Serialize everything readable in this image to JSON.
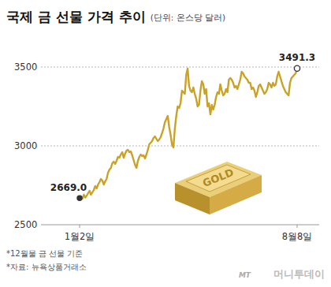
{
  "chart_data": {
    "type": "line",
    "title": "국제 금 선물 가격 추이",
    "subtitle": "(단위: 온스당 달러)",
    "categories": [
      "1월2일",
      null,
      null,
      null,
      null,
      null,
      null,
      null,
      null,
      null,
      null,
      null,
      null,
      null,
      null,
      null,
      null,
      null,
      null,
      null,
      null,
      null,
      null,
      null,
      null,
      null,
      null,
      null,
      null,
      null,
      null,
      null,
      null,
      null,
      null,
      null,
      null,
      null,
      null,
      null,
      null,
      null,
      null,
      null,
      null,
      null,
      null,
      null,
      null,
      null,
      null,
      null,
      null,
      null,
      null,
      null,
      null,
      null,
      null,
      null,
      null,
      null,
      null,
      null,
      null,
      null,
      null,
      null,
      null,
      null,
      null,
      null,
      null,
      null,
      null,
      null,
      null,
      null,
      null,
      null,
      null,
      null,
      null,
      null,
      null,
      null,
      null,
      null,
      null,
      null,
      null,
      null,
      null,
      null,
      null,
      null,
      null,
      null,
      null,
      null,
      null,
      null,
      null,
      null,
      null,
      null,
      null,
      null,
      null,
      null,
      null,
      null,
      null,
      null,
      null,
      null,
      null,
      null,
      null,
      null,
      null,
      null,
      null,
      null,
      null,
      null,
      null,
      null,
      null,
      null,
      null,
      null,
      null,
      null,
      null,
      null,
      null,
      null,
      null,
      null,
      null,
      null,
      null,
      null,
      null,
      null,
      null,
      null,
      null,
      null,
      null,
      null,
      null,
      "8월8일"
    ],
    "values": [
      2669.0,
      2680,
      2665,
      2690,
      2672,
      2685,
      2700,
      2715,
      2690,
      2705,
      2720,
      2745,
      2730,
      2755,
      2770,
      2790,
      2780,
      2755,
      2775,
      2790,
      2830,
      2850,
      2860,
      2890,
      2900,
      2885,
      2905,
      2930,
      2925,
      2945,
      2960,
      2925,
      2950,
      2970,
      2975,
      2960,
      2965,
      2940,
      2910,
      2880,
      2860,
      2905,
      2930,
      2945,
      2935,
      2940,
      2920,
      2945,
      2975,
      3010,
      3020,
      3030,
      3050,
      3060,
      3045,
      3030,
      3040,
      3055,
      3080,
      3110,
      3150,
      3170,
      3190,
      3120,
      3070,
      3010,
      2990,
      3110,
      3190,
      3250,
      3240,
      3270,
      3350,
      3340,
      3330,
      3450,
      3490,
      3380,
      3350,
      3340,
      3370,
      3330,
      3300,
      3250,
      3260,
      3350,
      3410,
      3390,
      3330,
      3360,
      3250,
      3270,
      3200,
      3260,
      3230,
      3260,
      3310,
      3340,
      3330,
      3390,
      3350,
      3320,
      3330,
      3360,
      3340,
      3420,
      3430,
      3420,
      3400,
      3370,
      3380,
      3360,
      3390,
      3420,
      3470,
      3460,
      3440,
      3430,
      3420,
      3400,
      3400,
      3360,
      3370,
      3350,
      3310,
      3340,
      3380,
      3390,
      3370,
      3350,
      3330,
      3340,
      3360,
      3400,
      3390,
      3370,
      3400,
      3380,
      3390,
      3440,
      3470,
      3440,
      3410,
      3380,
      3360,
      3340,
      3330,
      3320,
      3400,
      3430,
      3440,
      3450,
      3460,
      3491.3
    ],
    "color": "#c9a227",
    "ylim": [
      2500,
      3500
    ],
    "yticks": [
      2500,
      3000,
      3500
    ],
    "grid": true,
    "annotations": [
      {
        "index": 0,
        "text": "2669.0"
      },
      {
        "index": 153,
        "text": "3491.3"
      }
    ],
    "image_text": "GOLD",
    "notes": [
      "*12월물 금 선물 기준",
      "*자료: 뉴욕상품거래소"
    ],
    "logo_mark": "MT",
    "logo": "머니투데이"
  }
}
